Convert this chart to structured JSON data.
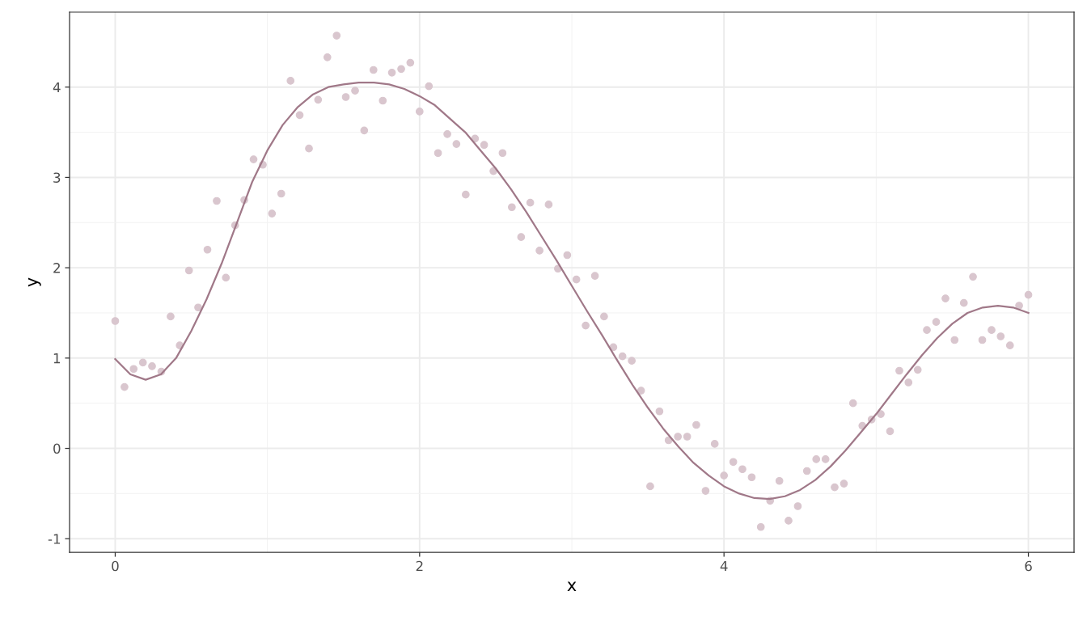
{
  "chart_data": {
    "type": "scatter",
    "xlabel": "x",
    "ylabel": "y",
    "xlim": [
      -0.3,
      6.3
    ],
    "ylim": [
      -1.15,
      4.83
    ],
    "xticks": [
      0,
      2,
      4,
      6
    ],
    "yticks": [
      -1,
      0,
      1,
      2,
      3,
      4
    ],
    "grid": true,
    "series": [
      {
        "color": "#d9c6ce",
        "marker": "circle",
        "x": [
          0.0,
          0.061,
          0.121,
          0.182,
          0.242,
          0.303,
          0.364,
          0.424,
          0.485,
          0.545,
          0.606,
          0.667,
          0.727,
          0.788,
          0.848,
          0.909,
          0.97,
          1.03,
          1.091,
          1.152,
          1.212,
          1.273,
          1.333,
          1.394,
          1.455,
          1.515,
          1.576,
          1.636,
          1.697,
          1.758,
          1.818,
          1.879,
          1.939,
          2.0,
          2.061,
          2.121,
          2.182,
          2.242,
          2.303,
          2.364,
          2.424,
          2.485,
          2.545,
          2.606,
          2.667,
          2.727,
          2.788,
          2.848,
          2.909,
          2.97,
          3.03,
          3.091,
          3.152,
          3.212,
          3.273,
          3.333,
          3.394,
          3.455,
          3.515,
          3.576,
          3.636,
          3.697,
          3.758,
          3.818,
          3.879,
          3.939,
          4.0,
          4.061,
          4.121,
          4.182,
          4.242,
          4.303,
          4.364,
          4.424,
          4.485,
          4.545,
          4.606,
          4.667,
          4.727,
          4.788,
          4.848,
          4.909,
          4.97,
          5.03,
          5.091,
          5.152,
          5.212,
          5.273,
          5.333,
          5.394,
          5.455,
          5.515,
          5.576,
          5.636,
          5.697,
          5.758,
          5.818,
          5.879,
          5.939,
          6.0
        ],
        "values": [
          1.41,
          0.68,
          0.88,
          0.95,
          0.91,
          0.85,
          1.46,
          1.14,
          1.97,
          1.56,
          2.2,
          2.74,
          1.89,
          2.47,
          2.75,
          3.2,
          3.14,
          2.6,
          2.82,
          4.07,
          3.69,
          3.32,
          3.86,
          4.33,
          4.57,
          3.89,
          3.96,
          3.52,
          4.19,
          3.85,
          4.16,
          4.2,
          4.27,
          3.73,
          4.01,
          3.27,
          3.48,
          3.37,
          2.81,
          3.43,
          3.36,
          3.07,
          3.27,
          2.67,
          2.34,
          2.72,
          2.19,
          2.7,
          1.99,
          2.14,
          1.87,
          1.36,
          1.91,
          1.46,
          1.12,
          1.02,
          0.97,
          0.64,
          -0.42,
          0.41,
          0.09,
          0.13,
          0.13,
          0.26,
          -0.47,
          0.05,
          -0.3,
          -0.15,
          -0.23,
          -0.32,
          -0.87,
          -0.58,
          -0.36,
          -0.8,
          -0.64,
          -0.25,
          -0.12,
          -0.12,
          -0.43,
          -0.39,
          0.5,
          0.25,
          0.32,
          0.38,
          0.19,
          0.86,
          0.73,
          0.87,
          1.31,
          1.4,
          1.66,
          1.2,
          1.61,
          1.9,
          1.2,
          1.31,
          1.24,
          1.14,
          1.58,
          1.7
        ]
      },
      {
        "type": "line",
        "color": "#a07888",
        "marker": "none",
        "line_style": "solid",
        "x": [
          0,
          0.1,
          0.2,
          0.3,
          0.4,
          0.5,
          0.6,
          0.7,
          0.8,
          0.9,
          1.0,
          1.1,
          1.2,
          1.3,
          1.4,
          1.5,
          1.6,
          1.7,
          1.8,
          1.9,
          2.0,
          2.1,
          2.2,
          2.3,
          2.4,
          2.5,
          2.6,
          2.7,
          2.8,
          2.9,
          3.0,
          3.1,
          3.2,
          3.3,
          3.4,
          3.5,
          3.6,
          3.7,
          3.8,
          3.9,
          4.0,
          4.1,
          4.2,
          4.3,
          4.4,
          4.5,
          4.6,
          4.7,
          4.8,
          4.9,
          5.0,
          5.1,
          5.2,
          5.3,
          5.4,
          5.5,
          5.6,
          5.7,
          5.8,
          5.9,
          6.0
        ],
        "values": [
          0.99,
          0.82,
          0.76,
          0.82,
          1.0,
          1.3,
          1.65,
          2.05,
          2.5,
          2.95,
          3.3,
          3.58,
          3.78,
          3.92,
          4.0,
          4.03,
          4.05,
          4.05,
          4.03,
          3.98,
          3.9,
          3.8,
          3.65,
          3.5,
          3.3,
          3.1,
          2.87,
          2.62,
          2.35,
          2.08,
          1.8,
          1.52,
          1.25,
          0.97,
          0.7,
          0.45,
          0.22,
          0.02,
          -0.16,
          -0.3,
          -0.42,
          -0.5,
          -0.55,
          -0.56,
          -0.53,
          -0.46,
          -0.35,
          -0.2,
          -0.02,
          0.18,
          0.38,
          0.6,
          0.82,
          1.03,
          1.22,
          1.38,
          1.5,
          1.56,
          1.58,
          1.56,
          1.5
        ]
      }
    ]
  }
}
